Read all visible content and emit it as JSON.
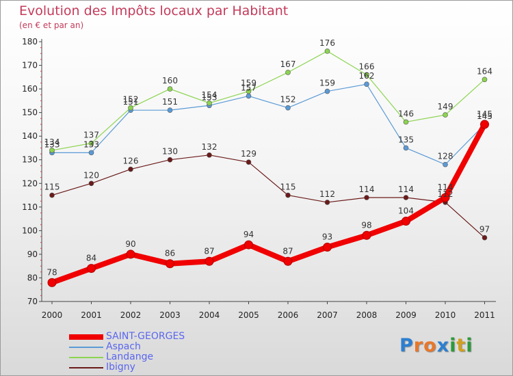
{
  "title": "Evolution des Impôts locaux par Habitant",
  "subtitle": "(en € et par an)",
  "logo": {
    "letters": [
      "P",
      "r",
      "o",
      "x",
      "i",
      "t",
      "i"
    ],
    "colors": [
      "#2c7fd0",
      "#e8772a",
      "#e8772a",
      "#2c7fd0",
      "#2c9a3a",
      "#d0a020",
      "#2c9a3a"
    ]
  },
  "chart_data": {
    "type": "line",
    "categories": [
      "2000",
      "2001",
      "2002",
      "2003",
      "2004",
      "2005",
      "2006",
      "2007",
      "2008",
      "2009",
      "2010",
      "2011"
    ],
    "ylim": [
      70,
      180
    ],
    "yticks": [
      70,
      80,
      90,
      100,
      110,
      120,
      130,
      140,
      150,
      160,
      170,
      180
    ],
    "grid": false,
    "legend_position": "bottom-left",
    "series": [
      {
        "name": "Ibigny",
        "color": "#6b1a1a",
        "width": 1.2,
        "marker_r": 3.5,
        "values": [
          115,
          120,
          126,
          130,
          132,
          129,
          115,
          112,
          114,
          114,
          112,
          97
        ],
        "labels": [
          "115",
          "120",
          "126",
          "130",
          "132",
          "129",
          "115",
          "112",
          "114",
          "114",
          "112",
          "97"
        ]
      },
      {
        "name": "Aspach",
        "color": "#5a9ad6",
        "width": 1.2,
        "marker_r": 3.5,
        "values": [
          133,
          133,
          151,
          151,
          153,
          157,
          152,
          159,
          162,
          135,
          128,
          145
        ],
        "labels": [
          "133",
          "133",
          "151",
          "151",
          "153",
          "157",
          "152",
          "159",
          "162",
          "135",
          "128",
          "145"
        ]
      },
      {
        "name": "Landange",
        "color": "#8cd450",
        "width": 1.2,
        "marker_r": 3.5,
        "values": [
          134,
          137,
          152,
          160,
          154,
          159,
          167,
          176,
          166,
          146,
          149,
          164
        ],
        "labels": [
          "134",
          "137",
          "152",
          "160",
          "154",
          "159",
          "167",
          "176",
          "166",
          "146",
          "149",
          "164"
        ]
      },
      {
        "name": "SAINT-GEORGES",
        "color": "#f00000",
        "width": 8,
        "marker_r": 6,
        "values": [
          78,
          84,
          90,
          86,
          87,
          94,
          87,
          93,
          98,
          104,
          114,
          145
        ],
        "labels": [
          "78",
          "84",
          "90",
          "86",
          "87",
          "94",
          "87",
          "93",
          "98",
          "104",
          "114",
          "145"
        ]
      }
    ],
    "legend_order": [
      "SAINT-GEORGES",
      "Aspach",
      "Landange",
      "Ibigny"
    ]
  }
}
